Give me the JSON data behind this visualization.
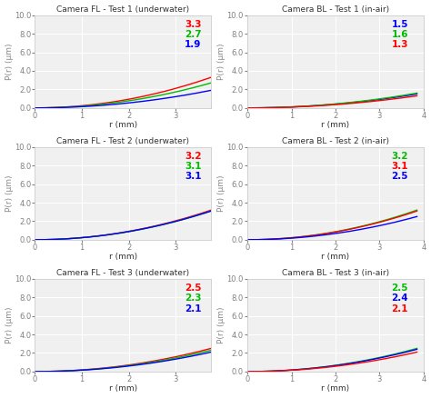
{
  "subplots": [
    {
      "title": "Camera FL - Test 1 (underwater)",
      "curves": [
        {
          "label": "3.3",
          "color": "#ff0000",
          "end_val": 3.3,
          "power": 2.0
        },
        {
          "label": "2.7",
          "color": "#00bb00",
          "end_val": 2.7,
          "power": 2.0
        },
        {
          "label": "1.9",
          "color": "#0000ff",
          "end_val": 1.9,
          "power": 2.0
        }
      ],
      "xmax": 3.75,
      "xticks": [
        0,
        1,
        2,
        3
      ],
      "annot_colors": [
        "#ff0000",
        "#00bb00",
        "#0000ff"
      ],
      "annot_labels": [
        "3.3",
        "2.7",
        "1.9"
      ]
    },
    {
      "title": "Camera BL - Test 1 (in-air)",
      "curves": [
        {
          "label": "1.5",
          "color": "#0000ff",
          "end_val": 1.5,
          "power": 2.0
        },
        {
          "label": "1.6",
          "color": "#00bb00",
          "end_val": 1.6,
          "power": 2.0
        },
        {
          "label": "1.3",
          "color": "#ff0000",
          "end_val": 1.3,
          "power": 2.0
        }
      ],
      "xmax": 3.85,
      "xticks": [
        0,
        1,
        2,
        3,
        4
      ],
      "annot_colors": [
        "#0000ff",
        "#00bb00",
        "#ff0000"
      ],
      "annot_labels": [
        "1.5",
        "1.6",
        "1.3"
      ]
    },
    {
      "title": "Camera FL - Test 2 (underwater)",
      "curves": [
        {
          "label": "3.2",
          "color": "#ff0000",
          "end_val": 3.2,
          "power": 2.0
        },
        {
          "label": "3.1",
          "color": "#00bb00",
          "end_val": 3.1,
          "power": 2.0
        },
        {
          "label": "3.1",
          "color": "#0000ff",
          "end_val": 3.1,
          "power": 2.0
        }
      ],
      "xmax": 3.75,
      "xticks": [
        0,
        1,
        2,
        3
      ],
      "annot_colors": [
        "#ff0000",
        "#00bb00",
        "#0000ff"
      ],
      "annot_labels": [
        "3.2",
        "3.1",
        "3.1"
      ]
    },
    {
      "title": "Camera BL - Test 2 (in-air)",
      "curves": [
        {
          "label": "3.2",
          "color": "#00bb00",
          "end_val": 3.2,
          "power": 2.0
        },
        {
          "label": "3.1",
          "color": "#ff0000",
          "end_val": 3.1,
          "power": 2.0
        },
        {
          "label": "2.5",
          "color": "#0000ff",
          "end_val": 2.5,
          "power": 2.0
        }
      ],
      "xmax": 3.85,
      "xticks": [
        0,
        1,
        2,
        3,
        4
      ],
      "annot_colors": [
        "#00bb00",
        "#ff0000",
        "#0000ff"
      ],
      "annot_labels": [
        "3.2",
        "3.1",
        "2.5"
      ]
    },
    {
      "title": "Camera FL - Test 3 (underwater)",
      "curves": [
        {
          "label": "2.5",
          "color": "#ff0000",
          "end_val": 2.5,
          "power": 2.0
        },
        {
          "label": "2.3",
          "color": "#00bb00",
          "end_val": 2.3,
          "power": 2.0
        },
        {
          "label": "2.1",
          "color": "#0000ff",
          "end_val": 2.1,
          "power": 2.0
        }
      ],
      "xmax": 3.75,
      "xticks": [
        0,
        1,
        2,
        3
      ],
      "annot_colors": [
        "#ff0000",
        "#00bb00",
        "#0000ff"
      ],
      "annot_labels": [
        "2.5",
        "2.3",
        "2.1"
      ]
    },
    {
      "title": "Camera BL - Test 3 (in-air)",
      "curves": [
        {
          "label": "2.5",
          "color": "#00bb00",
          "end_val": 2.5,
          "power": 2.0
        },
        {
          "label": "2.4",
          "color": "#0000ff",
          "end_val": 2.4,
          "power": 2.0
        },
        {
          "label": "2.1",
          "color": "#ff0000",
          "end_val": 2.1,
          "power": 2.0
        }
      ],
      "xmax": 3.85,
      "xticks": [
        0,
        1,
        2,
        3,
        4
      ],
      "annot_colors": [
        "#00bb00",
        "#0000ff",
        "#ff0000"
      ],
      "annot_labels": [
        "2.5",
        "2.4",
        "2.1"
      ]
    }
  ],
  "ylabel": "P(r) (μm)",
  "xlabel": "r (mm)",
  "ylim": [
    0,
    10.0
  ],
  "yticks": [
    0.0,
    2.0,
    4.0,
    6.0,
    8.0,
    10.0
  ],
  "background_color": "#ffffff",
  "axes_bg": "#f0f0f0",
  "grid_color": "#ffffff",
  "spine_color": "#c0c0c0",
  "tick_color": "#808080"
}
